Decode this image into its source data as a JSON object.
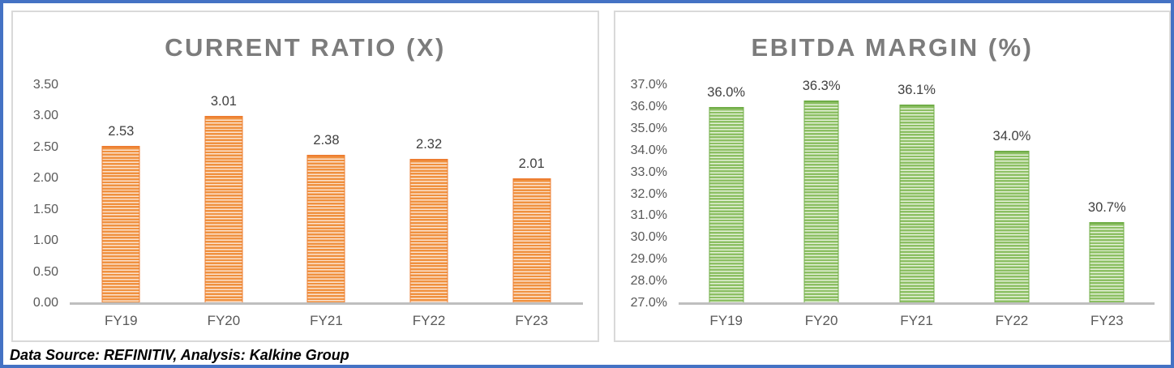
{
  "footer": {
    "source_note": "Data Source: REFINITIV, Analysis: Kalkine Group"
  },
  "colors": {
    "border_blue": "#4472C4",
    "panel_border": "#D9D9D9",
    "title_gray": "#7C7C7C",
    "axis_gray": "#BFBFBF",
    "tick_text": "#595959",
    "label_text": "#404040",
    "orange": "#ED7D31",
    "orange_stripe": "#F0913F",
    "orange_pale": "#FBE3D0",
    "green": "#70AD47",
    "green_stripe": "#8CBF63",
    "green_pale": "#E5F1D8"
  },
  "chart_data": [
    {
      "type": "bar",
      "title": "CURRENT RATIO (X)",
      "categories": [
        "FY19",
        "FY20",
        "FY21",
        "FY22",
        "FY23"
      ],
      "values": [
        2.53,
        3.01,
        2.38,
        2.32,
        2.01
      ],
      "data_labels": [
        "2.53",
        "3.01",
        "2.38",
        "2.32",
        "2.01"
      ],
      "xlabel": "",
      "ylabel": "",
      "ylim": [
        0,
        3.5
      ],
      "ytick_step": 0.5,
      "yticks": [
        "3.50",
        "3.00",
        "2.50",
        "2.00",
        "1.50",
        "1.00",
        "0.50",
        "0.00"
      ],
      "grid": false,
      "legend_position": "none",
      "bar_color_name": "orange",
      "bar_fill_pattern": "horizontal-stripes"
    },
    {
      "type": "bar",
      "title": "EBITDA MARGIN (%)",
      "categories": [
        "FY19",
        "FY20",
        "FY21",
        "FY22",
        "FY23"
      ],
      "values": [
        36.0,
        36.3,
        36.1,
        34.0,
        30.7
      ],
      "data_labels": [
        "36.0%",
        "36.3%",
        "36.1%",
        "34.0%",
        "30.7%"
      ],
      "xlabel": "",
      "ylabel": "",
      "ylim": [
        27,
        37
      ],
      "ytick_step": 1.0,
      "yticks": [
        "37.0%",
        "36.0%",
        "35.0%",
        "34.0%",
        "33.0%",
        "32.0%",
        "31.0%",
        "30.0%",
        "29.0%",
        "28.0%",
        "27.0%"
      ],
      "grid": false,
      "legend_position": "none",
      "bar_color_name": "green",
      "bar_fill_pattern": "horizontal-stripes"
    }
  ]
}
